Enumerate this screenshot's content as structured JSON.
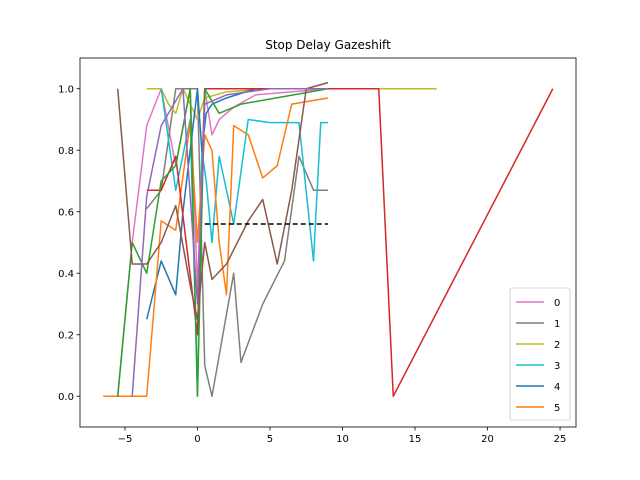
{
  "chart_data": {
    "type": "line",
    "title": "Stop Delay Gazeshift",
    "xlabel": "",
    "ylabel": "",
    "xlim": [
      -8.1,
      26.1
    ],
    "ylim": [
      -0.1,
      1.1
    ],
    "xticks": [
      -5,
      0,
      5,
      10,
      15,
      20,
      25
    ],
    "xtick_labels": [
      "−5",
      "0",
      "5",
      "10",
      "15",
      "20",
      "25"
    ],
    "yticks": [
      0.0,
      0.2,
      0.4,
      0.6,
      0.8,
      1.0
    ],
    "ytick_labels": [
      "0.0",
      "0.2",
      "0.4",
      "0.6",
      "0.8",
      "1.0"
    ],
    "grid": false,
    "legend_position": "lower right",
    "series": [
      {
        "name": "0",
        "color": "#e377c2",
        "values": [
          [
            -5.5,
            0.0
          ],
          [
            -4.5,
            0.5
          ],
          [
            -3.5,
            0.88
          ],
          [
            -2.5,
            1.0
          ],
          [
            -1.5,
            0.75
          ],
          [
            -0.5,
            1.0
          ],
          [
            0.0,
            0.35
          ],
          [
            0.5,
            1.0
          ],
          [
            1.0,
            0.85
          ],
          [
            1.5,
            0.9
          ],
          [
            2.5,
            0.94
          ],
          [
            4.0,
            0.98
          ],
          [
            9.0,
            1.0
          ]
        ]
      },
      {
        "name": "1",
        "color": "#7f7f7f",
        "values": [
          [
            -3.5,
            0.61
          ],
          [
            -2.5,
            0.67
          ],
          [
            -1.5,
            1.0
          ],
          [
            0.0,
            1.0
          ],
          [
            0.5,
            0.1
          ],
          [
            1.0,
            0.0
          ],
          [
            2.5,
            0.4
          ],
          [
            3.0,
            0.11
          ],
          [
            4.5,
            0.3
          ],
          [
            6.0,
            0.44
          ],
          [
            7.0,
            0.78
          ],
          [
            8.0,
            0.67
          ],
          [
            9.0,
            0.67
          ]
        ]
      },
      {
        "name": "2",
        "color": "#bcbd22",
        "values": [
          [
            -3.5,
            1.0
          ],
          [
            -2.5,
            1.0
          ],
          [
            -2.0,
            0.95
          ],
          [
            -1.5,
            0.92
          ],
          [
            -1.0,
            1.0
          ],
          [
            0.0,
            0.9
          ],
          [
            0.5,
            0.97
          ],
          [
            2.0,
            0.99
          ],
          [
            5.0,
            1.0
          ],
          [
            12.5,
            1.0
          ],
          [
            16.5,
            1.0
          ]
        ]
      },
      {
        "name": "3",
        "color": "#17becf",
        "values": [
          [
            -2.5,
            1.0
          ],
          [
            -1.5,
            0.67
          ],
          [
            -0.5,
            0.9
          ],
          [
            0.0,
            0.0
          ],
          [
            0.3,
            0.8
          ],
          [
            0.6,
            0.7
          ],
          [
            1.0,
            0.5
          ],
          [
            1.5,
            0.78
          ],
          [
            2.5,
            0.56
          ],
          [
            3.5,
            0.9
          ],
          [
            5.0,
            0.89
          ],
          [
            7.0,
            0.89
          ],
          [
            8.0,
            0.44
          ],
          [
            8.5,
            0.89
          ],
          [
            9.0,
            0.89
          ]
        ]
      },
      {
        "name": "4",
        "color": "#1f77b4",
        "values": [
          [
            -3.5,
            0.25
          ],
          [
            -2.5,
            0.44
          ],
          [
            -1.5,
            0.33
          ],
          [
            -1.0,
            0.6
          ],
          [
            -0.5,
            0.8
          ],
          [
            0.0,
            1.0
          ],
          [
            0.3,
            0.8
          ],
          [
            0.6,
            0.92
          ],
          [
            1.0,
            0.95
          ],
          [
            2.0,
            0.97
          ],
          [
            4.0,
            1.0
          ],
          [
            9.0,
            1.0
          ]
        ]
      },
      {
        "name": "5",
        "color": "#ff7f0e",
        "values": [
          [
            -6.5,
            0.0
          ],
          [
            -3.5,
            0.0
          ],
          [
            -2.5,
            0.57
          ],
          [
            -1.5,
            0.54
          ],
          [
            -0.5,
            0.89
          ],
          [
            0.0,
            0.5
          ],
          [
            0.5,
            0.85
          ],
          [
            1.0,
            0.8
          ],
          [
            1.5,
            0.5
          ],
          [
            2.0,
            0.33
          ],
          [
            2.5,
            0.88
          ],
          [
            3.5,
            0.85
          ],
          [
            4.5,
            0.71
          ],
          [
            5.5,
            0.75
          ],
          [
            6.5,
            0.95
          ],
          [
            9.0,
            0.97
          ]
        ]
      },
      {
        "name": "",
        "color": "#d62728",
        "values": [
          [
            -3.5,
            0.67
          ],
          [
            -2.5,
            0.67
          ],
          [
            -1.5,
            0.78
          ],
          [
            0.0,
            0.2
          ],
          [
            0.5,
            1.0
          ],
          [
            2.0,
            1.0
          ],
          [
            12.5,
            1.0
          ],
          [
            13.5,
            0.0
          ],
          [
            24.5,
            1.0
          ]
        ]
      },
      {
        "name": "",
        "color": "#2ca02c",
        "values": [
          [
            -5.5,
            0.0
          ],
          [
            -4.5,
            0.5
          ],
          [
            -3.5,
            0.4
          ],
          [
            -2.5,
            0.7
          ],
          [
            -1.5,
            0.75
          ],
          [
            -0.5,
            1.0
          ],
          [
            0.0,
            0.0
          ],
          [
            0.5,
            1.0
          ],
          [
            1.5,
            0.92
          ],
          [
            3.0,
            0.95
          ],
          [
            9.0,
            1.0
          ]
        ]
      },
      {
        "name": "",
        "color": "#8c564b",
        "values": [
          [
            -5.5,
            1.0
          ],
          [
            -4.5,
            0.43
          ],
          [
            -3.5,
            0.43
          ],
          [
            -2.5,
            0.5
          ],
          [
            -1.5,
            0.62
          ],
          [
            -0.5,
            0.36
          ],
          [
            0.0,
            0.25
          ],
          [
            0.5,
            0.5
          ],
          [
            1.0,
            0.38
          ],
          [
            2.0,
            0.43
          ],
          [
            3.5,
            0.57
          ],
          [
            4.5,
            0.64
          ],
          [
            5.5,
            0.43
          ],
          [
            6.5,
            0.67
          ],
          [
            7.5,
            1.0
          ],
          [
            9.0,
            1.02
          ]
        ]
      },
      {
        "name": "",
        "color": "#9467bd",
        "values": [
          [
            -4.5,
            0.0
          ],
          [
            -3.5,
            0.65
          ],
          [
            -2.5,
            0.88
          ],
          [
            -1.0,
            1.0
          ],
          [
            0.0,
            0.3
          ],
          [
            0.5,
            0.95
          ],
          [
            2.0,
            0.98
          ],
          [
            5.0,
            1.0
          ],
          [
            9.0,
            1.0
          ]
        ]
      }
    ],
    "reference_line": {
      "color": "#000000",
      "style": "dashed",
      "x": [
        0.5,
        9.0
      ],
      "y": 0.56
    }
  }
}
